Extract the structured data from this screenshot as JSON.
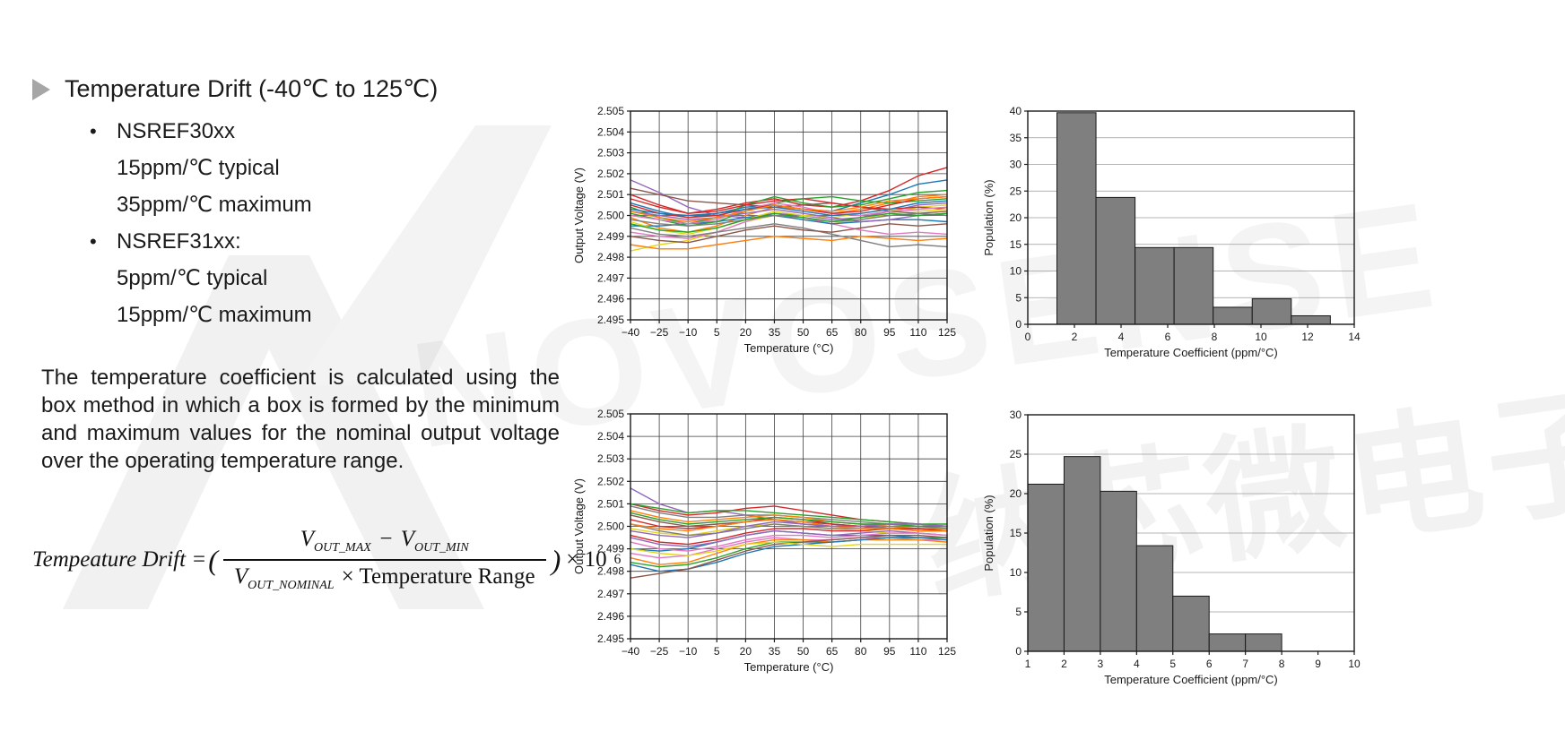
{
  "slide": {
    "title": "Temperature Drift (-40℃ to 125℃)",
    "bullet_dot": "•",
    "bullets": [
      {
        "heading": "NSREF30xx",
        "lines": [
          "15ppm/℃ typical",
          "35ppm/℃ maximum"
        ]
      },
      {
        "heading": "NSREF31xx:",
        "lines": [
          "5ppm/℃ typical",
          "15ppm/℃ maximum"
        ]
      }
    ],
    "paragraph": "The temperature coefficient is calculated using the box method in which a box is formed by the minimum and maximum values for the nominal output voltage over the operating temperature range.",
    "formula": {
      "lhs": "Tempeature Drift =",
      "open_paren": "(",
      "v": "V",
      "sub_max": "OUT_MAX",
      "minus": "−",
      "sub_min": "OUT_MIN",
      "sub_nominal": "OUT_NOMINAL",
      "den_rest": "× Temperature Range",
      "close_paren": ")",
      "times_base": "× 10",
      "exponent": "6"
    },
    "watermark": {
      "latin": "NOVOSENSE",
      "cjk": "纳芯微电子"
    }
  },
  "chart_data": [
    {
      "id": "lines_top",
      "type": "line",
      "title": "",
      "xlabel": "Temperature (°C)",
      "ylabel": "Output Voltage (V)",
      "xlim": [
        -40,
        125
      ],
      "ylim": [
        2.495,
        2.505
      ],
      "xticks": [
        -40,
        -25,
        -10,
        5,
        20,
        35,
        50,
        65,
        80,
        95,
        110,
        125
      ],
      "yticks": [
        2.495,
        2.496,
        2.497,
        2.498,
        2.499,
        2.5,
        2.501,
        2.502,
        2.503,
        2.504,
        2.505
      ],
      "grid": "both",
      "x": [
        -40,
        -25,
        -10,
        5,
        20,
        35,
        50,
        65,
        80,
        95,
        110,
        125
      ],
      "series": [
        {
          "color": "#d62728",
          "y": [
            2.501,
            2.5005,
            2.5001,
            2.5003,
            2.5006,
            2.5008,
            2.5005,
            2.5004,
            2.5007,
            2.5012,
            2.5019,
            2.5023
          ]
        },
        {
          "color": "#1f77b4",
          "y": [
            2.5006,
            2.5002,
            2.4999,
            2.5001,
            2.5004,
            2.5005,
            2.5003,
            2.5002,
            2.5006,
            2.501,
            2.5015,
            2.5017
          ]
        },
        {
          "color": "#2ca02c",
          "y": [
            2.5004,
            2.4999,
            2.4996,
            2.4999,
            2.5005,
            2.5009,
            2.5006,
            2.5004,
            2.5005,
            2.5008,
            2.5011,
            2.5012
          ]
        },
        {
          "color": "#ff7f0e",
          "y": [
            2.4999,
            2.4994,
            2.4992,
            2.4995,
            2.5,
            2.5004,
            2.5003,
            2.5001,
            2.5003,
            2.5006,
            2.5009,
            2.501
          ]
        },
        {
          "color": "#e3d619",
          "y": [
            2.4983,
            2.4986,
            2.4988,
            2.4992,
            2.4997,
            2.5,
            2.4998,
            2.4996,
            2.4998,
            2.5001,
            2.5004,
            2.5005
          ]
        },
        {
          "color": "#9467bd",
          "y": [
            2.5017,
            2.5011,
            2.5004,
            2.5,
            2.4999,
            2.5001,
            2.5,
            2.4998,
            2.4999,
            2.5002,
            2.5005,
            2.5006
          ]
        },
        {
          "color": "#e377c2",
          "y": [
            2.4992,
            2.499,
            2.4989,
            2.4992,
            2.4997,
            2.5001,
            2.4999,
            2.4996,
            2.4993,
            2.4991,
            2.4992,
            2.4991
          ]
        },
        {
          "color": "#8c564b",
          "y": [
            2.5013,
            2.501,
            2.5007,
            2.5006,
            2.5005,
            2.5004,
            2.5005,
            2.5006,
            2.5004,
            2.5002,
            2.5001,
            2.5002
          ]
        },
        {
          "color": "#7f7f7f",
          "y": [
            2.4994,
            2.4991,
            2.499,
            2.4992,
            2.4994,
            2.4996,
            2.4994,
            2.4991,
            2.4988,
            2.4985,
            2.4986,
            2.4985
          ]
        },
        {
          "color": "#d62728",
          "y": [
            2.5008,
            2.5004,
            2.5001,
            2.5002,
            2.5005,
            2.5007,
            2.5008,
            2.5006,
            2.5004,
            2.5003,
            2.5004,
            2.5003
          ]
        },
        {
          "color": "#1f77b4",
          "y": [
            2.4995,
            2.4995,
            2.4996,
            2.4997,
            2.4999,
            2.5,
            2.4998,
            2.4996,
            2.4997,
            2.4998,
            2.4998,
            2.4997
          ]
        },
        {
          "color": "#2ca02c",
          "y": [
            2.5001,
            2.4998,
            2.4995,
            2.4997,
            2.5002,
            2.5006,
            2.5008,
            2.5009,
            2.5007,
            2.5006,
            2.5007,
            2.5008
          ]
        },
        {
          "color": "#ff7f0e",
          "y": [
            2.4986,
            2.4984,
            2.4984,
            2.4986,
            2.4988,
            2.499,
            2.4989,
            2.4988,
            2.499,
            2.4989,
            2.4988,
            2.4989
          ]
        },
        {
          "color": "#e3d619",
          "y": [
            2.4997,
            2.4993,
            2.4991,
            2.4994,
            2.4998,
            2.5002,
            2.5,
            2.4999,
            2.5001,
            2.5003,
            2.5002,
            2.5003
          ]
        },
        {
          "color": "#9467bd",
          "y": [
            2.5002,
            2.5,
            2.4998,
            2.4999,
            2.5001,
            2.5003,
            2.5001,
            2.4999,
            2.4997,
            2.4998,
            2.5,
            2.5001
          ]
        },
        {
          "color": "#e377c2",
          "y": [
            2.5,
            2.4998,
            2.4996,
            2.4998,
            2.5003,
            2.5006,
            2.5004,
            2.5001,
            2.5,
            2.5002,
            2.5003,
            2.5004
          ]
        },
        {
          "color": "#8c564b",
          "y": [
            2.499,
            2.4988,
            2.4987,
            2.499,
            2.4993,
            2.4995,
            2.4993,
            2.4992,
            2.4994,
            2.4996,
            2.4995,
            2.4996
          ]
        },
        {
          "color": "#7f7f7f",
          "y": [
            2.4998,
            2.4996,
            2.4995,
            2.4996,
            2.4998,
            2.5,
            2.4999,
            2.4997,
            2.4998,
            2.5,
            2.5001,
            2.5
          ]
        },
        {
          "color": "#d62728",
          "y": [
            2.5005,
            2.5001,
            2.4999,
            2.5,
            2.5003,
            2.5005,
            2.5003,
            2.5001,
            2.5002,
            2.5005,
            2.5008,
            2.5009
          ]
        },
        {
          "color": "#1f77b4",
          "y": [
            2.5003,
            2.5001,
            2.5,
            2.5001,
            2.5003,
            2.5004,
            2.5002,
            2.5,
            2.5001,
            2.5003,
            2.5006,
            2.5007
          ]
        },
        {
          "color": "#2ca02c",
          "y": [
            2.4996,
            2.4993,
            2.4992,
            2.4994,
            2.4998,
            2.5001,
            2.4999,
            2.4997,
            2.4999,
            2.5001,
            2.5,
            2.5001
          ]
        },
        {
          "color": "#ff7f0e",
          "y": [
            2.5002,
            2.4999,
            2.4997,
            2.4999,
            2.5002,
            2.5005,
            2.5003,
            2.5002,
            2.5004,
            2.5007,
            2.5008,
            2.5009
          ]
        }
      ]
    },
    {
      "id": "hist_top",
      "type": "bar",
      "title": "",
      "xlabel": "Temperature Coefficient (ppm/°C)",
      "ylabel": "Population (%)",
      "xlim": [
        0,
        14
      ],
      "ylim": [
        0,
        40
      ],
      "xticks": [
        0,
        2,
        4,
        6,
        8,
        10,
        12,
        14
      ],
      "yticks": [
        0,
        5,
        10,
        15,
        20,
        25,
        30,
        35,
        40
      ],
      "grid": "horizontal",
      "bin_start": 1.25,
      "bin_width": 1.675,
      "values": [
        39.7,
        23.8,
        14.4,
        14.4,
        3.2,
        4.8,
        1.6
      ],
      "bar_color": "#7f7f7f",
      "bar_edge": "#1a1a1a"
    },
    {
      "id": "lines_bottom",
      "type": "line",
      "title": "",
      "xlabel": "Temperature (°C)",
      "ylabel": "Output Voltage (V)",
      "xlim": [
        -40,
        125
      ],
      "ylim": [
        2.495,
        2.505
      ],
      "xticks": [
        -40,
        -25,
        -10,
        5,
        20,
        35,
        50,
        65,
        80,
        95,
        110,
        125
      ],
      "yticks": [
        2.495,
        2.496,
        2.497,
        2.498,
        2.499,
        2.5,
        2.501,
        2.502,
        2.503,
        2.504,
        2.505
      ],
      "grid": "both",
      "x": [
        -40,
        -25,
        -10,
        5,
        20,
        35,
        50,
        65,
        80,
        95,
        110,
        125
      ],
      "series": [
        {
          "color": "#9467bd",
          "y": [
            2.5017,
            2.501,
            2.5006,
            2.5007,
            2.5005,
            2.5003,
            2.5001,
            2.5,
            2.5,
            2.5001,
            2.5001,
            2.5
          ]
        },
        {
          "color": "#d62728",
          "y": [
            2.501,
            2.5007,
            2.5005,
            2.5006,
            2.5008,
            2.5009,
            2.5007,
            2.5005,
            2.5003,
            2.5002,
            2.5001,
            2.5
          ]
        },
        {
          "color": "#2ca02c",
          "y": [
            2.501,
            2.5008,
            2.5006,
            2.5007,
            2.5007,
            2.5006,
            2.5005,
            2.5004,
            2.5003,
            2.5002,
            2.5001,
            2.5001
          ]
        },
        {
          "color": "#7f7f7f",
          "y": [
            2.5009,
            2.5006,
            2.5004,
            2.5004,
            2.5005,
            2.5005,
            2.5004,
            2.5003,
            2.5002,
            2.5001,
            2.5,
            2.5
          ]
        },
        {
          "color": "#ff7f0e",
          "y": [
            2.5007,
            2.5004,
            2.5002,
            2.5003,
            2.5004,
            2.5005,
            2.5004,
            2.5002,
            2.5001,
            2.5,
            2.4999,
            2.4999
          ]
        },
        {
          "color": "#8c564b",
          "y": [
            2.5005,
            2.5002,
            2.5,
            2.5001,
            2.5002,
            2.5003,
            2.5002,
            2.5001,
            2.5,
            2.4999,
            2.4999,
            2.4998
          ]
        },
        {
          "color": "#d62728",
          "y": [
            2.5003,
            2.5,
            2.4999,
            2.5,
            2.5002,
            2.5004,
            2.5003,
            2.5001,
            2.5,
            2.4999,
            2.4998,
            2.4998
          ]
        },
        {
          "color": "#e3d619",
          "y": [
            2.4999,
            2.4997,
            2.4996,
            2.4998,
            2.5,
            2.5001,
            2.5,
            2.4999,
            2.4998,
            2.4997,
            2.4997,
            2.4996
          ]
        },
        {
          "color": "#1f77b4",
          "y": [
            2.499,
            2.4989,
            2.499,
            2.4993,
            2.4996,
            2.4998,
            2.4997,
            2.4996,
            2.4996,
            2.4996,
            2.4995,
            2.4995
          ]
        },
        {
          "color": "#e377c2",
          "y": [
            2.4988,
            2.4986,
            2.4987,
            2.499,
            2.4993,
            2.4995,
            2.4994,
            2.4994,
            2.4995,
            2.4995,
            2.4994,
            2.4994
          ]
        },
        {
          "color": "#9467bd",
          "y": [
            2.4995,
            2.4992,
            2.4991,
            2.4993,
            2.4996,
            2.4998,
            2.4997,
            2.4996,
            2.4997,
            2.4998,
            2.4997,
            2.4996
          ]
        },
        {
          "color": "#2ca02c",
          "y": [
            2.4984,
            2.4982,
            2.4983,
            2.4986,
            2.499,
            2.4993,
            2.4993,
            2.4993,
            2.4994,
            2.4995,
            2.4995,
            2.4995
          ]
        },
        {
          "color": "#ff7f0e",
          "y": [
            2.4986,
            2.4983,
            2.4984,
            2.4988,
            2.4992,
            2.4994,
            2.4994,
            2.4993,
            2.4994,
            2.4994,
            2.4994,
            2.4993
          ]
        },
        {
          "color": "#1f77b4",
          "y": [
            2.4983,
            2.498,
            2.4981,
            2.4984,
            2.4988,
            2.4991,
            2.4992,
            2.4993,
            2.4994,
            2.4995,
            2.4995,
            2.4994
          ]
        },
        {
          "color": "#8c564b",
          "y": [
            2.4977,
            2.4979,
            2.4981,
            2.4985,
            2.4989,
            2.4992,
            2.4993,
            2.4994,
            2.4995,
            2.4996,
            2.4996,
            2.4995
          ]
        },
        {
          "color": "#e3d619",
          "y": [
            2.499,
            2.4988,
            2.4987,
            2.4989,
            2.4992,
            2.4993,
            2.4992,
            2.4991,
            2.4992,
            2.4992,
            2.4992,
            2.4992
          ]
        },
        {
          "color": "#7f7f7f",
          "y": [
            2.5001,
            2.4998,
            2.4996,
            2.4997,
            2.4999,
            2.5001,
            2.5,
            2.4999,
            2.4999,
            2.5,
            2.5,
            2.4999
          ]
        },
        {
          "color": "#d62728",
          "y": [
            2.4996,
            2.4993,
            2.4992,
            2.4994,
            2.4997,
            2.4999,
            2.4999,
            2.4998,
            2.4998,
            2.4999,
            2.4999,
            2.4998
          ]
        },
        {
          "color": "#e377c2",
          "y": [
            2.4993,
            2.499,
            2.4989,
            2.4991,
            2.4994,
            2.4996,
            2.4996,
            2.4995,
            2.4996,
            2.4997,
            2.4997,
            2.4996
          ]
        },
        {
          "color": "#2ca02c",
          "y": [
            2.5006,
            2.5003,
            2.5001,
            2.5002,
            2.5003,
            2.5004,
            2.5003,
            2.5002,
            2.5001,
            2.5001,
            2.5,
            2.5
          ]
        },
        {
          "color": "#ff7f0e",
          "y": [
            2.5001,
            2.4999,
            2.4998,
            2.5,
            2.5002,
            2.5003,
            2.5002,
            2.5,
            2.4999,
            2.4999,
            2.4998,
            2.4998
          ]
        },
        {
          "color": "#9467bd",
          "y": [
            2.4998,
            2.4996,
            2.4995,
            2.4997,
            2.5,
            2.5002,
            2.5001,
            2.5,
            2.5,
            2.5001,
            2.5001,
            2.5
          ]
        }
      ]
    },
    {
      "id": "hist_bottom",
      "type": "bar",
      "title": "",
      "xlabel": "Temperature Coefficient (ppm/°C)",
      "ylabel": "Population (%)",
      "xlim": [
        1,
        10
      ],
      "ylim": [
        0,
        30
      ],
      "xticks": [
        1,
        2,
        3,
        4,
        5,
        6,
        7,
        8,
        9,
        10
      ],
      "yticks": [
        0,
        5,
        10,
        15,
        20,
        25,
        30
      ],
      "grid": "horizontal",
      "bin_start": 1,
      "bin_width": 1,
      "values": [
        21.2,
        24.7,
        20.3,
        13.4,
        7.0,
        2.2,
        2.2
      ],
      "bar_color": "#7f7f7f",
      "bar_edge": "#1a1a1a"
    }
  ]
}
